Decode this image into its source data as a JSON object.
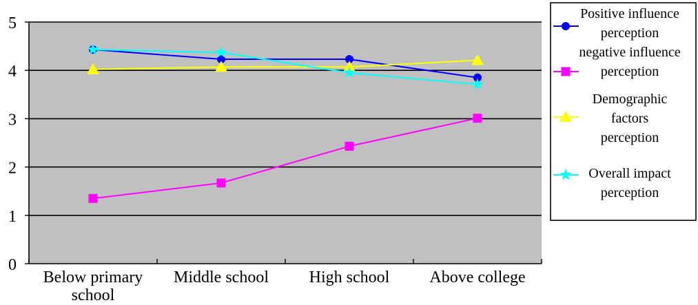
{
  "chart_data": {
    "type": "line",
    "categories": [
      [
        "Below primary",
        "school"
      ],
      [
        "Middle school"
      ],
      [
        "High school"
      ],
      [
        "Above college"
      ]
    ],
    "ylim": [
      0,
      5
    ],
    "yticks": [
      0,
      1,
      2,
      3,
      4,
      5
    ],
    "grid": true,
    "legend_position": "right",
    "plot_background": "#C0C0C0",
    "series": [
      {
        "name_lines": [
          "Positive influence",
          "perception"
        ],
        "color": "#0000FF",
        "marker": "circle",
        "values": [
          4.43,
          4.23,
          4.23,
          3.85
        ]
      },
      {
        "name_lines": [
          "negative influence",
          "perception"
        ],
        "color": "#FF00FF",
        "marker": "square",
        "values": [
          1.35,
          1.67,
          2.43,
          3.01
        ]
      },
      {
        "name_lines": [
          "Demographic",
          "factors",
          "perception"
        ],
        "color": "#FFFF00",
        "marker": "triangle",
        "values": [
          4.02,
          4.07,
          4.07,
          4.21
        ]
      },
      {
        "name_lines": [
          "Overall impact",
          "perception"
        ],
        "color": "#00FFFF",
        "marker": "star",
        "values": [
          4.43,
          4.37,
          3.95,
          3.71
        ]
      }
    ]
  }
}
